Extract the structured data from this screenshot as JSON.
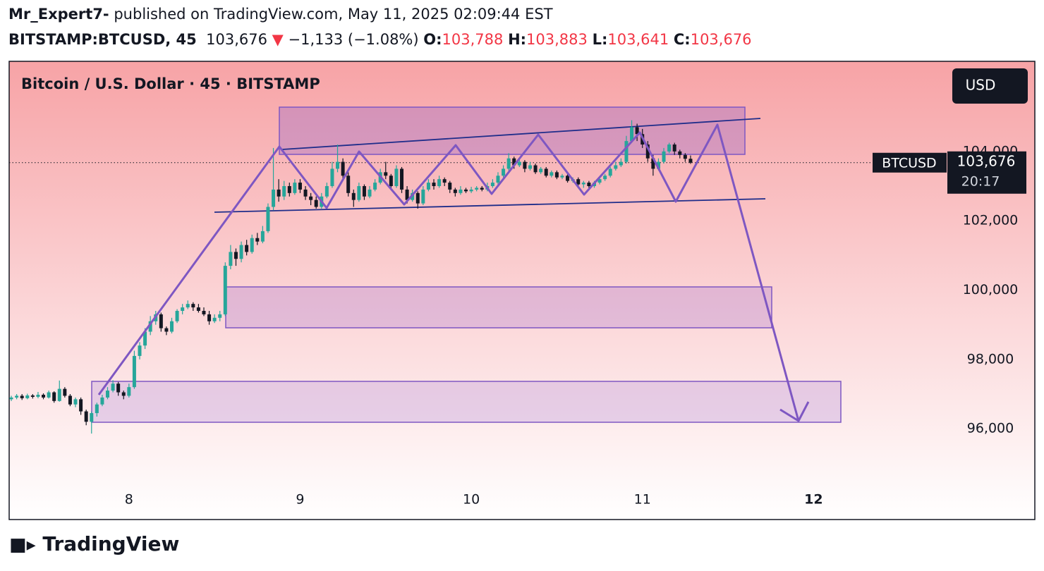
{
  "header": {
    "author": "Mr_Expert7-",
    "byline": "published on TradingView.com, May 11, 2025 02:09:44 EST",
    "symbol": "BITSTAMP:BTCUSD, 45",
    "last": "103,676",
    "direction": "▼",
    "change": "−1,133 (−1.08%)",
    "ohlc": [
      {
        "key": "O:",
        "value": "103,788"
      },
      {
        "key": "H:",
        "value": "103,883"
      },
      {
        "key": "L:",
        "value": "103,641"
      },
      {
        "key": "C:",
        "value": "103,676"
      }
    ]
  },
  "chart_data": {
    "type": "candlestick",
    "title": "Bitcoin / U.S. Dollar · 45 · BITSTAMP",
    "currency_button": "USD",
    "up_color": "#26a69a",
    "down_color": "#131722",
    "x": [
      7.3125,
      7.34375,
      7.375,
      7.40625,
      7.4375,
      7.46875,
      7.5,
      7.53125,
      7.5625,
      7.59375,
      7.625,
      7.65625,
      7.6875,
      7.71875,
      7.75,
      7.78125,
      7.8125,
      7.84375,
      7.875,
      7.90625,
      7.9375,
      7.96875,
      8,
      8.03125,
      8.0625,
      8.09375,
      8.125,
      8.15625,
      8.1875,
      8.21875,
      8.25,
      8.28125,
      8.3125,
      8.34375,
      8.375,
      8.40625,
      8.4375,
      8.46875,
      8.5,
      8.53125,
      8.5625,
      8.59375,
      8.625,
      8.65625,
      8.6875,
      8.71875,
      8.75,
      8.78125,
      8.8125,
      8.84375,
      8.875,
      8.90625,
      8.9375,
      8.96875,
      9,
      9.03125,
      9.0625,
      9.09375,
      9.125,
      9.15625,
      9.1875,
      9.21875,
      9.25,
      9.28125,
      9.3125,
      9.34375,
      9.375,
      9.40625,
      9.4375,
      9.46875,
      9.5,
      9.53125,
      9.5625,
      9.59375,
      9.625,
      9.65625,
      9.6875,
      9.71875,
      9.75,
      9.78125,
      9.8125,
      9.84375,
      9.875,
      9.90625,
      9.9375,
      9.96875,
      10,
      10.03125,
      10.0625,
      10.09375,
      10.125,
      10.15625,
      10.1875,
      10.21875,
      10.25,
      10.28125,
      10.3125,
      10.34375,
      10.375,
      10.40625,
      10.4375,
      10.46875,
      10.5,
      10.53125,
      10.5625,
      10.59375,
      10.625,
      10.65625,
      10.6875,
      10.71875,
      10.75,
      10.78125,
      10.8125,
      10.84375,
      10.875,
      10.90625,
      10.9375,
      10.96875,
      11,
      11.03125,
      11.0625,
      11.09375,
      11.125,
      11.15625,
      11.1875,
      11.21875,
      11.25,
      11.28125
    ],
    "open": [
      96850,
      96900,
      96950,
      96880,
      96960,
      96920,
      96980,
      96900,
      97050,
      96800,
      97150,
      96950,
      96700,
      96850,
      96500,
      96200,
      96450,
      96700,
      96900,
      97100,
      97300,
      97050,
      96950,
      97200,
      98100,
      98400,
      98800,
      99100,
      99300,
      98900,
      98800,
      99100,
      99400,
      99500,
      99600,
      99500,
      99400,
      99300,
      99100,
      99200,
      99300,
      100700,
      101100,
      100900,
      101300,
      101100,
      101500,
      101400,
      101700,
      102400,
      102900,
      102700,
      103000,
      102800,
      103100,
      102900,
      102700,
      102600,
      102400,
      102700,
      103000,
      103500,
      103700,
      103300,
      102800,
      102600,
      103000,
      102700,
      102900,
      103100,
      103400,
      103300,
      103000,
      103500,
      102900,
      102600,
      102800,
      102500,
      102900,
      103100,
      103000,
      103200,
      103100,
      102900,
      102800,
      102900,
      102850,
      102900,
      102950,
      102900,
      103000,
      103100,
      103300,
      103500,
      103800,
      103600,
      103700,
      103500,
      103600,
      103400,
      103500,
      103300,
      103400,
      103250,
      103300,
      103150,
      103200,
      103050,
      103100,
      103000,
      103100,
      103200,
      103300,
      103500,
      103600,
      103700,
      104300,
      104700,
      104500,
      104200,
      103800,
      103500,
      103700,
      104000,
      104200,
      104000,
      103900,
      103788
    ],
    "high": [
      96950,
      97000,
      97000,
      97010,
      97000,
      97060,
      97020,
      97100,
      97080,
      97390,
      97200,
      97000,
      96900,
      96900,
      96550,
      96500,
      96750,
      96980,
      97200,
      97400,
      97350,
      97100,
      97300,
      98250,
      98500,
      98900,
      99250,
      99400,
      99350,
      98950,
      99200,
      99450,
      99600,
      99700,
      99650,
      99600,
      99500,
      99400,
      99300,
      99400,
      100800,
      101300,
      101200,
      101400,
      101450,
      101600,
      101650,
      101850,
      102500,
      104100,
      103200,
      103150,
      103100,
      103200,
      103200,
      103000,
      102800,
      102700,
      102800,
      103100,
      103700,
      104200,
      103800,
      103400,
      102900,
      103100,
      103050,
      103000,
      103200,
      103500,
      103700,
      103350,
      103600,
      103550,
      103000,
      102900,
      102850,
      103000,
      103200,
      103200,
      103300,
      103250,
      103150,
      102950,
      103000,
      102950,
      102980,
      103000,
      103000,
      103100,
      103200,
      103400,
      103600,
      103950,
      103850,
      103800,
      103750,
      103700,
      103650,
      103550,
      103550,
      103450,
      103450,
      103350,
      103350,
      103250,
      103250,
      103150,
      103150,
      103150,
      103250,
      103350,
      103550,
      103700,
      103800,
      104450,
      104900,
      104800,
      104650,
      104300,
      103900,
      103800,
      104100,
      104250,
      104250,
      104050,
      103950,
      103883
    ],
    "low": [
      96800,
      96850,
      96830,
      96850,
      96870,
      96880,
      96850,
      96870,
      96750,
      96780,
      96900,
      96650,
      96620,
      96400,
      96100,
      95860,
      96350,
      96650,
      96850,
      97050,
      96950,
      96850,
      96900,
      97150,
      98000,
      98300,
      98700,
      99000,
      98800,
      98700,
      98750,
      99050,
      99300,
      99450,
      99400,
      99350,
      99250,
      99000,
      99050,
      99100,
      99250,
      100600,
      100700,
      100800,
      101000,
      101050,
      101300,
      101350,
      101650,
      102300,
      102550,
      102600,
      102700,
      102750,
      102800,
      102600,
      102450,
      102350,
      102350,
      102650,
      102950,
      103400,
      103200,
      102700,
      102400,
      102550,
      102600,
      102650,
      102850,
      103050,
      103200,
      102900,
      102950,
      102800,
      102500,
      102550,
      102350,
      102450,
      102850,
      102900,
      102950,
      103000,
      102800,
      102700,
      102750,
      102800,
      102800,
      102850,
      102850,
      102850,
      102950,
      103050,
      103250,
      103450,
      103500,
      103550,
      103400,
      103450,
      103350,
      103350,
      103250,
      103250,
      103200,
      103200,
      103100,
      103100,
      103000,
      102950,
      102950,
      102950,
      103050,
      103150,
      103250,
      103450,
      103550,
      103650,
      104250,
      104300,
      104100,
      103700,
      103300,
      103450,
      103650,
      103950,
      103900,
      103800,
      103700,
      103641
    ],
    "close": [
      96900,
      96950,
      96880,
      96960,
      96920,
      96980,
      96900,
      97050,
      96800,
      97150,
      96950,
      96700,
      96850,
      96500,
      96200,
      96450,
      96700,
      96900,
      97100,
      97300,
      97050,
      96950,
      97200,
      98100,
      98400,
      98800,
      99100,
      99300,
      98900,
      98800,
      99100,
      99400,
      99500,
      99600,
      99500,
      99400,
      99300,
      99100,
      99200,
      99300,
      100700,
      101100,
      100900,
      101300,
      101100,
      101500,
      101400,
      101700,
      102400,
      102900,
      102700,
      103000,
      102800,
      103100,
      102900,
      102700,
      102600,
      102400,
      102700,
      103000,
      103500,
      103700,
      103300,
      102800,
      102600,
      103000,
      102700,
      102900,
      103100,
      103400,
      103300,
      103000,
      103500,
      102900,
      102600,
      102800,
      102500,
      102900,
      103100,
      103000,
      103200,
      103100,
      102900,
      102800,
      102900,
      102850,
      102900,
      102950,
      102900,
      103000,
      103100,
      103300,
      103500,
      103800,
      103600,
      103700,
      103500,
      103600,
      103400,
      103500,
      103300,
      103400,
      103250,
      103300,
      103150,
      103200,
      103050,
      103100,
      103000,
      103100,
      103200,
      103300,
      103500,
      103600,
      103700,
      104300,
      104700,
      104500,
      104200,
      103800,
      103500,
      103700,
      104000,
      104200,
      104000,
      103900,
      103788,
      103676
    ],
    "xlim": [
      7.3,
      12.79
    ],
    "xticks": [
      8,
      9,
      10,
      11,
      12
    ],
    "ylim": [
      93420,
      106600
    ],
    "yticks": [
      {
        "value": 96000,
        "label": "96,000"
      },
      {
        "value": 98000,
        "label": "98,000"
      },
      {
        "value": 100000,
        "label": "100,000"
      },
      {
        "value": 102000,
        "label": "102,000"
      },
      {
        "value": 104000,
        "label": "104,000"
      }
    ],
    "last_price_line": true,
    "price_label": {
      "symbol": "BTCUSD",
      "price": "103,676",
      "countdown": "20:17"
    }
  },
  "footer": {
    "logo": "TradingView"
  }
}
